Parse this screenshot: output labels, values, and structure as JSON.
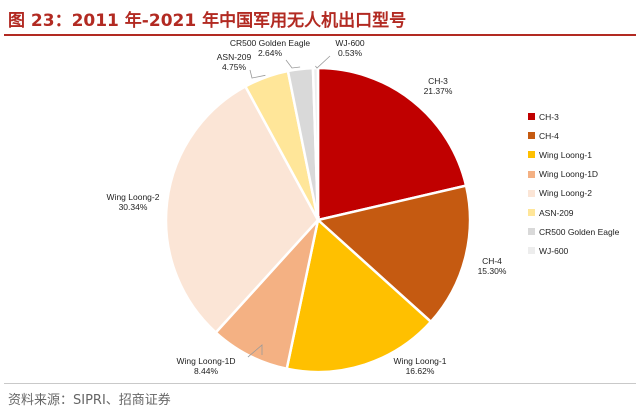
{
  "header": {
    "title": "图 23：2011 年-2021 年中国军用无人机出口型号"
  },
  "footer": {
    "source": "资料来源：SIPRI、招商证券"
  },
  "chart_data": {
    "type": "pie",
    "title": "",
    "start_angle_deg": 0,
    "direction": "clockwise",
    "legend_position": "right",
    "slices": [
      {
        "label": "CH-3",
        "value": 21.37,
        "value_text": "21.37%",
        "color": "#c00000"
      },
      {
        "label": "CH-4",
        "value": 15.3,
        "value_text": "15.30%",
        "color": "#c55a11"
      },
      {
        "label": "Wing Loong-1",
        "value": 16.62,
        "value_text": "16.62%",
        "color": "#ffc000"
      },
      {
        "label": "Wing Loong-1D",
        "value": 8.44,
        "value_text": "8.44%",
        "color": "#f4b183"
      },
      {
        "label": "Wing Loong-2",
        "value": 30.34,
        "value_text": "30.34%",
        "color": "#fbe5d6"
      },
      {
        "label": "ASN-209",
        "value": 4.75,
        "value_text": "4.75%",
        "color": "#ffe699"
      },
      {
        "label": "CR500 Golden Eagle",
        "value": 2.64,
        "value_text": "2.64%",
        "color": "#d9d9d9"
      },
      {
        "label": "WJ-600",
        "value": 0.53,
        "value_text": "0.53%",
        "color": "#ededed"
      }
    ]
  }
}
